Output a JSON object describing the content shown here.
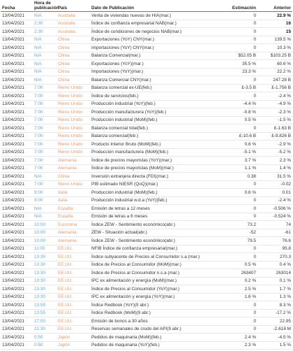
{
  "table": {
    "header": [
      "Fecha",
      "Hora de publicación",
      "País",
      "Dato de Publicación",
      "Estimación",
      "Anterior"
    ],
    "rows": [
      [
        "13/04/2021",
        "N/A",
        "Australia",
        "Venta de viviendas nuevas de HIA(mar.)",
        "0",
        "22.9 %"
      ],
      [
        "13/04/2021",
        "2:30",
        "Australia",
        "Índice de confianza empresarial NAB(mar.)",
        "0",
        "16"
      ],
      [
        "13/04/2021",
        "2:30",
        "Australia",
        "Índice de condiciones de negocios NAB(mar.)",
        "0",
        "15"
      ],
      [
        "13/04/2021",
        "N/A",
        "China",
        "Exportaciones (YoY) CNY(mar.)",
        "0",
        "139.5 %"
      ],
      [
        "13/04/2021",
        "N/A",
        "China",
        "Importaciones (YoY) CNY(mar.)",
        "0",
        "10.3 %"
      ],
      [
        "13/04/2021",
        "N/A",
        "China",
        "Balanza Comercial(mar.)",
        "$52.05 B",
        "$103.25 B"
      ],
      [
        "13/04/2021",
        "N/A",
        "China",
        "Exportaciones (YoY)(mar.)",
        "35.5 %",
        "60.6 %"
      ],
      [
        "13/04/2021",
        "N/A",
        "China",
        "Importaciones (YoY)(mar.)",
        "23.3 %",
        "22.2 %"
      ],
      [
        "13/04/2021",
        "N/A",
        "China",
        "Balanza Comercial CNY(mar.)",
        "0",
        "247.28 B"
      ],
      [
        "13/04/2021",
        "7:00",
        "Reino Unido",
        "Balanza comercial ex-UE(feb.)",
        "£-3.5 B",
        "£-1.756 B"
      ],
      [
        "13/04/2021",
        "7:00",
        "Reino Unido",
        "Índice de servicios(feb.)",
        "0",
        "-2.4 %"
      ],
      [
        "13/04/2021",
        "7:00",
        "Reino Unido",
        "Producción industrial (YoY)(feb.)",
        "-4.4 %",
        "-4.9 %"
      ],
      [
        "13/04/2021",
        "7:00",
        "Reino Unido",
        "Producción manufacturera (YoY)(feb.)",
        "-0.8 %",
        "-2.3 %"
      ],
      [
        "13/04/2021",
        "7:00",
        "Reino Unido",
        "Producción industrial (MoM)(feb.)",
        "0.5 %",
        "-1.5 %"
      ],
      [
        "13/04/2021",
        "7:00",
        "Reino Unido",
        "Balanza comercial total(feb.)",
        "0",
        "£-1.63 B"
      ],
      [
        "13/04/2021",
        "7:00",
        "Reino Unido",
        "Balanza comercial(feb.)",
        "£-10.6 B",
        "£-9.826 B"
      ],
      [
        "13/04/2021",
        "7:00",
        "Reino Unido",
        "Producto Interior Bruto (MoM)(feb.)",
        "0.6 %",
        "-2.9 %"
      ],
      [
        "13/04/2021",
        "7:00",
        "Reino Unido",
        "Producción manufacturera (MoM)(feb.)",
        "-5.1 %",
        "-5.2 %"
      ],
      [
        "13/04/2021",
        "7:00",
        "Alemania",
        "Índice de precios mayoristas (YoY)(mar.)",
        "3.7 %",
        "2.3 %"
      ],
      [
        "13/04/2021",
        "7:00",
        "Alemania",
        "Índice de precios mayoristas (MoM)(mar.)",
        "1.1 %",
        "1.4 %"
      ],
      [
        "13/04/2021",
        "N/A",
        "China",
        "Inversión extranjera directa (FDI)(mar.)",
        "0.38",
        "31.5 %"
      ],
      [
        "13/04/2021",
        "7:00",
        "Reino Unido",
        "PIB estimado NIESR (QoQ)(mar.)",
        "0",
        "-0.02"
      ],
      [
        "13/04/2021",
        "9:00",
        "Italia",
        "Producción industrial (MoM)(feb.)",
        "0.6 %",
        "0.01"
      ],
      [
        "13/04/2021",
        "9:00",
        "Italia",
        "Producción industrial w.d.a (YoY)(feb.)",
        "0",
        "-2.4 %"
      ],
      [
        "13/04/2021",
        "N/A",
        "España",
        "Emisión de letras a 12 meses",
        "0",
        "-0.506 %"
      ],
      [
        "13/04/2021",
        "N/A",
        "España",
        "Emisión de letras a 6 meses",
        "0",
        "-0.524 %"
      ],
      [
        "13/04/2021",
        "10:00",
        "Eurozona",
        "Índice ZEW - Sentimiento económico(abr.)",
        "73.2",
        "74"
      ],
      [
        "13/04/2021",
        "10:00",
        "Alemania",
        "ZEW - Situación actual(abr.)",
        "-52",
        "-61"
      ],
      [
        "13/04/2021",
        "10:00",
        "Alemania",
        "Índice ZEW - Sentimiento económico(abr.)",
        "79.5",
        "76.6"
      ],
      [
        "13/04/2021",
        "11:00",
        "EE.UU.",
        "NFIB Índice de confianza empresarial(mar.)",
        "0",
        "95.8"
      ],
      [
        "13/04/2021",
        "13:30",
        "EE.UU.",
        "Índice subyacente de Precios al Consumidor s.a (mar.)",
        "0",
        "270.3"
      ],
      [
        "13/04/2021",
        "13:30",
        "EE.UU.",
        "Índice de Precios al Consumidor (MoM)(mar.)",
        "0.5 %",
        "0.4 %"
      ],
      [
        "13/04/2021",
        "13:30",
        "EE.UU.",
        "Índice de Precios al Consumidor n.s.a (mar.)",
        "263407",
        "263014"
      ],
      [
        "13/04/2021",
        "13:30",
        "EE.UU.",
        "IPC ex alimentación y energía (MoM)(mar.)",
        "0.2 %",
        "0.1 %"
      ],
      [
        "13/04/2021",
        "13:30",
        "EE.UU.",
        "Índice de Precios al Consumidor (YoY)(mar.)",
        "2.5 %",
        "1.7 %"
      ],
      [
        "13/04/2021",
        "13:30",
        "EE.UU.",
        "IPC ex alimentación y energía (YoY)(mar.)",
        "1.6 %",
        "1.3 %"
      ],
      [
        "13/04/2021",
        "13:55",
        "EE.UU.",
        "Índice Redbook (YoY)(9 abr.)",
        "0",
        "8.3 %"
      ],
      [
        "13/04/2021",
        "13:55",
        "EE.UU.",
        "Índice Redbook (MoM)(9 abr.)",
        "0",
        "-17.2 %"
      ],
      [
        "13/04/2021",
        "17:00",
        "EE.UU.",
        "Emisión de bonos a 30 años",
        "0",
        "22.95"
      ],
      [
        "13/04/2021",
        "21:30",
        "EE.UU.",
        "Reservas semanales de crudo del API(9 abr.)",
        "0",
        "-2.618 M"
      ],
      [
        "13/04/2021",
        "0:50",
        "Japón",
        "Pedidos de maquinaria (MoM)(feb.)",
        "2.4 %",
        "-4.5 %"
      ],
      [
        "13/04/2021",
        "0:50",
        "Japón",
        "Pedidos de maquinaria (YoY)(feb.)",
        "2.3 %",
        "1.5 %"
      ]
    ]
  }
}
